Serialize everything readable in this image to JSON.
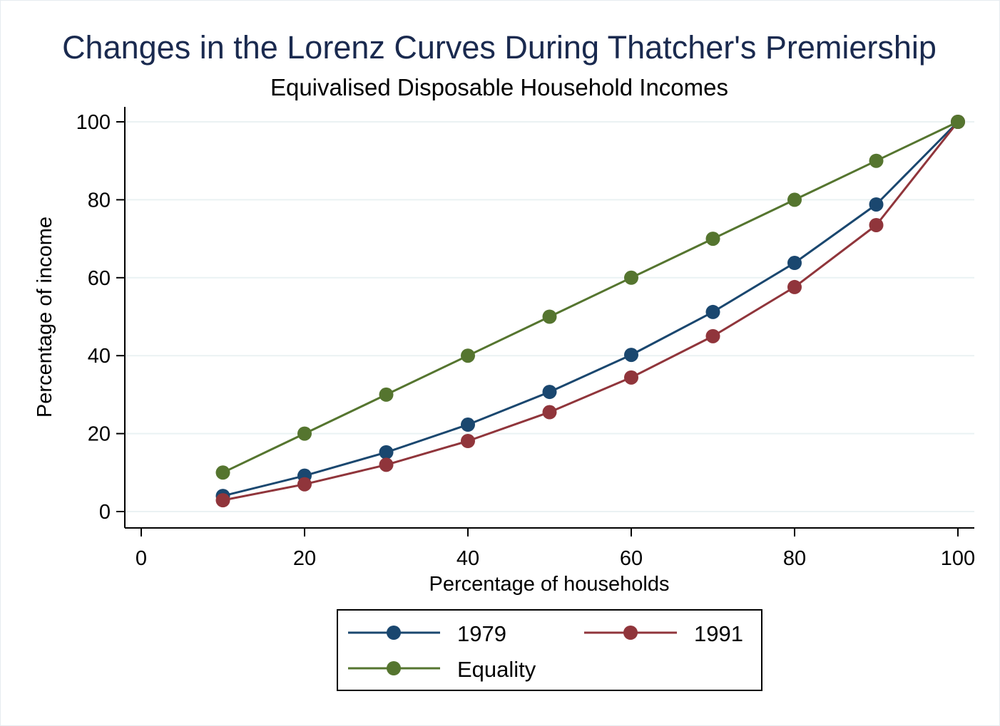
{
  "chart_data": {
    "type": "line",
    "title": "Changes in the Lorenz Curves During Thatcher's Premiership",
    "subtitle": "Equivalised Disposable Household Incomes",
    "xlabel": "Percentage of households",
    "ylabel": "Percentage of income",
    "xlim": [
      0,
      100
    ],
    "ylim": [
      0,
      100
    ],
    "xticks": [
      0,
      20,
      40,
      60,
      80,
      100
    ],
    "yticks": [
      0,
      20,
      40,
      60,
      80,
      100
    ],
    "grid": true,
    "legend_position": "bottom",
    "x": [
      10,
      20,
      30,
      40,
      50,
      60,
      70,
      80,
      90,
      100
    ],
    "series": [
      {
        "name": "1979",
        "color": "#1a476f",
        "values": [
          4,
          9.2,
          15.2,
          22.3,
          30.7,
          40.2,
          51.2,
          63.8,
          78.8,
          100
        ]
      },
      {
        "name": "1991",
        "color": "#90353b",
        "values": [
          2.9,
          7,
          12,
          18.1,
          25.5,
          34.4,
          45,
          57.6,
          73.5,
          100
        ]
      },
      {
        "name": "Equality",
        "color": "#55752f",
        "values": [
          10,
          20,
          30,
          40,
          50,
          60,
          70,
          80,
          90,
          100
        ]
      }
    ]
  }
}
